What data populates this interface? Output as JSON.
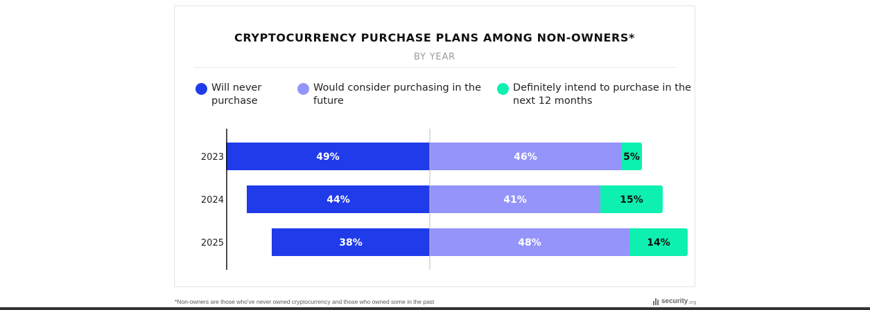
{
  "chart_data": {
    "type": "bar",
    "orientation": "horizontal",
    "stacked": "diverging",
    "title": "CRYPTOCURRENCY PURCHASE PLANS AMONG NON-OWNERS*",
    "subtitle": "BY YEAR",
    "categories": [
      "2023",
      "2024",
      "2025"
    ],
    "series": [
      {
        "name": "Will never purchase",
        "values": [
          49,
          44,
          38
        ],
        "labels": [
          "49%",
          "44%",
          "38%"
        ],
        "color": "#1f3bea",
        "label_color": "#ffffff",
        "side": "left"
      },
      {
        "name": "Would consider purchasing in the future",
        "values": [
          46,
          41,
          48
        ],
        "labels": [
          "46%",
          "41%",
          "48%"
        ],
        "color": "#9494fb",
        "label_color": "#ffffff",
        "side": "right"
      },
      {
        "name": "Definitely intend to purchase in the next 12 months",
        "values": [
          5,
          15,
          14
        ],
        "labels": [
          "5%",
          "15%",
          "14%"
        ],
        "color": "#0ef0b0",
        "label_color": "#111111",
        "side": "right"
      }
    ],
    "legend": "top",
    "grid": false
  },
  "footnote": "*Non-owners are those who've never owned cryptocurrency and those who owned some in the past",
  "logo": {
    "name": "security",
    "tld": ".org"
  }
}
